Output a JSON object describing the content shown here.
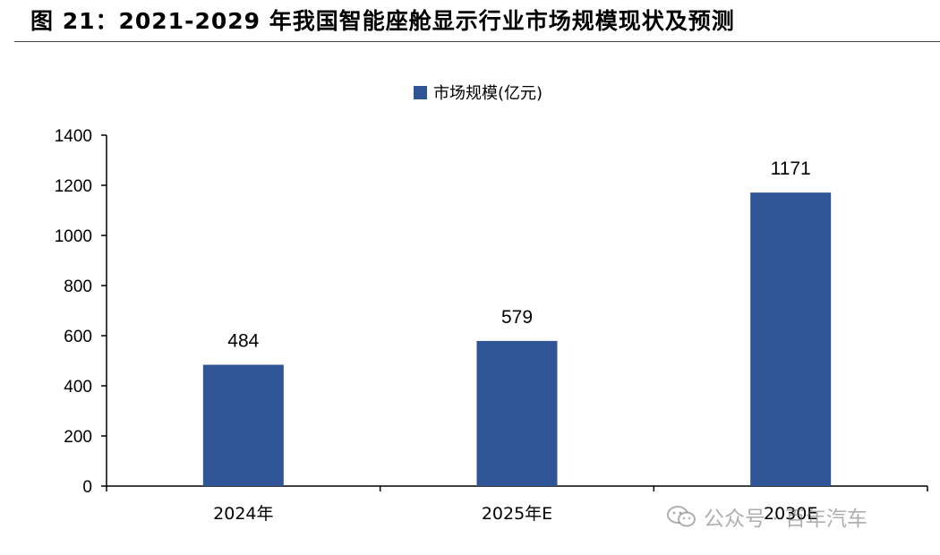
{
  "figure": {
    "title": "图 21：2021-2029 年我国智能座舱显示行业市场规模现状及预测"
  },
  "watermark": {
    "text": "公众号 · 百年汽车",
    "icon": "wechat-icon"
  },
  "colors": {
    "bar": "#2f5597",
    "axis": "#000000"
  },
  "chart_data": {
    "type": "bar",
    "categories": [
      "2024年",
      "2025年E",
      "2030E"
    ],
    "series": [
      {
        "name": "市场规模(亿元)",
        "values": [
          484,
          579,
          1171
        ]
      }
    ],
    "data_labels": [
      "484",
      "579",
      "1171"
    ],
    "yticks": [
      "0",
      "200",
      "400",
      "600",
      "800",
      "1000",
      "1200",
      "1400"
    ],
    "ylim": [
      0,
      1400
    ],
    "xlabel": "",
    "ylabel": "",
    "grid": false,
    "legend": "top-center"
  }
}
